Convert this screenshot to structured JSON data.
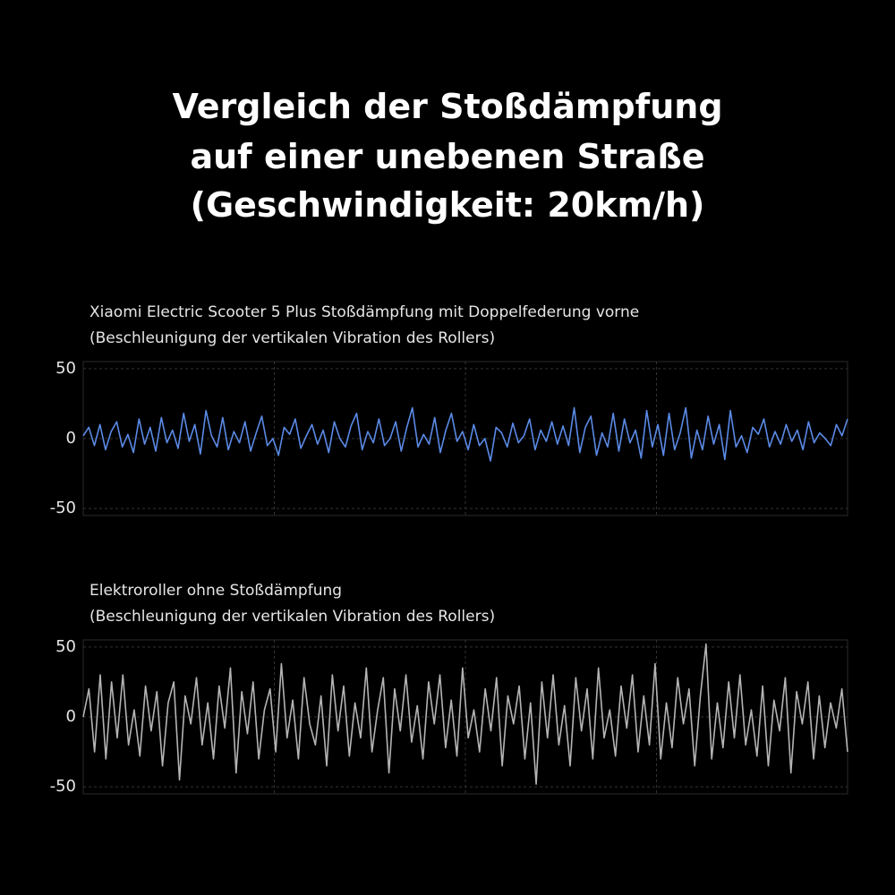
{
  "header": {
    "title_lines": [
      "Vergleich der Stoßdämpfung",
      "auf einer unebenen Straße",
      "(Geschwindigkeit: 20km/h)"
    ]
  },
  "chart_data": [
    {
      "type": "line",
      "title": "Xiaomi Electric Scooter 5 Plus Stoßdämpfung mit Doppelfederung vorne",
      "subtitle": "(Beschleunigung der vertikalen Vibration des Rollers)",
      "color": "#5b8ae6",
      "ylim": [
        -55,
        55
      ],
      "yticks": [
        50,
        0,
        -50
      ],
      "grid": true,
      "values": [
        2,
        8,
        -5,
        10,
        -8,
        5,
        12,
        -6,
        3,
        -10,
        14,
        -4,
        8,
        -9,
        15,
        -3,
        6,
        -7,
        18,
        -2,
        10,
        -11,
        20,
        2,
        -6,
        15,
        -8,
        5,
        -3,
        12,
        -9,
        4,
        16,
        -5,
        0,
        -12,
        8,
        3,
        14,
        -7,
        2,
        10,
        -4,
        6,
        -10,
        12,
        0,
        -6,
        9,
        18,
        -8,
        5,
        -3,
        14,
        -5,
        0,
        12,
        -9,
        8,
        22,
        -6,
        3,
        -4,
        15,
        -10,
        6,
        18,
        -2,
        5,
        -8,
        10,
        -5,
        0,
        -16,
        8,
        4,
        -6,
        11,
        -3,
        2,
        14,
        -8,
        6,
        -2,
        12,
        -4,
        9,
        -5,
        22,
        -10,
        8,
        16,
        -12,
        4,
        -6,
        18,
        -9,
        14,
        -3,
        6,
        -14,
        20,
        -6,
        10,
        -12,
        18,
        -8,
        4,
        22,
        -14,
        6,
        -8,
        16,
        -4,
        10,
        -15,
        20,
        -6,
        2,
        -10,
        8,
        3,
        14,
        -6,
        5,
        -4,
        10,
        -2,
        6,
        -8,
        12,
        -3,
        4,
        0,
        -5,
        10,
        2,
        14
      ]
    },
    {
      "type": "line",
      "title": "Elektroroller ohne Stoßdämpfung",
      "subtitle": "(Beschleunigung der vertikalen Vibration des Rollers)",
      "color": "#b4b4b4",
      "ylim": [
        -55,
        55
      ],
      "yticks": [
        50,
        0,
        -50
      ],
      "grid": true,
      "values": [
        0,
        20,
        -25,
        30,
        -30,
        25,
        -15,
        30,
        -20,
        5,
        -28,
        22,
        -10,
        18,
        -35,
        10,
        25,
        -45,
        15,
        -5,
        28,
        -20,
        10,
        -30,
        22,
        -8,
        35,
        -40,
        18,
        -12,
        25,
        -30,
        5,
        20,
        -25,
        38,
        -15,
        12,
        -30,
        28,
        -5,
        -20,
        15,
        -35,
        30,
        -10,
        22,
        -28,
        10,
        -15,
        35,
        -25,
        5,
        28,
        -40,
        20,
        -10,
        30,
        -18,
        8,
        -30,
        25,
        -5,
        30,
        -22,
        12,
        -28,
        35,
        -15,
        5,
        -25,
        20,
        -10,
        28,
        -35,
        15,
        -5,
        22,
        -30,
        10,
        -48,
        25,
        -15,
        30,
        -20,
        8,
        -35,
        28,
        -10,
        20,
        -30,
        35,
        -15,
        5,
        -28,
        22,
        -8,
        30,
        -25,
        15,
        -20,
        38,
        -30,
        10,
        -22,
        28,
        -5,
        20,
        -35,
        15,
        52,
        -30,
        10,
        -22,
        25,
        -15,
        30,
        -20,
        5,
        -28,
        22,
        -35,
        12,
        -10,
        28,
        -40,
        18,
        -5,
        25,
        -30,
        15,
        -22,
        10,
        -8,
        20,
        -25
      ]
    }
  ]
}
